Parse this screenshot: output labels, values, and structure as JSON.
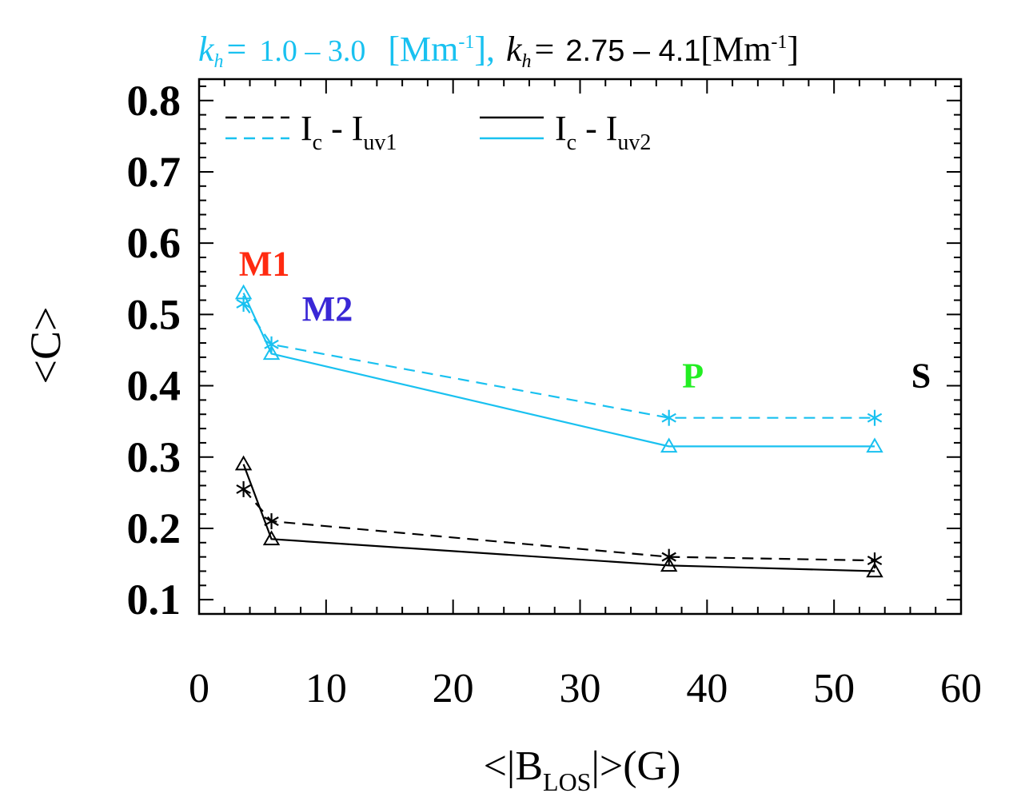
{
  "chart_data": {
    "type": "line",
    "title_parts": {
      "kh_symbol": "k",
      "kh_sub": "h",
      "eq": "=",
      "range1": "1.0 – 3.0",
      "unit1_open": "[Mm",
      "unit1_exp": "-1",
      "unit1_close": "],",
      "range2": "2.75 – 4.1",
      "unit2_open": "[Mm",
      "unit2_exp": "-1",
      "unit2_close": "]"
    },
    "xlabel_parts": {
      "pre": "<|B",
      "sub": "LOS",
      "post": "|>(G)"
    },
    "ylabel": "<C>",
    "xlim": [
      0,
      60
    ],
    "ylim": [
      0.08,
      0.83
    ],
    "x_ticks": [
      0,
      10,
      20,
      30,
      40,
      50,
      60
    ],
    "x_tick_labels": [
      "0",
      "10",
      "20",
      "30",
      "40",
      "50",
      "60"
    ],
    "y_ticks": [
      0.1,
      0.2,
      0.3,
      0.4,
      0.5,
      0.6,
      0.7,
      0.8
    ],
    "y_tick_labels": [
      "0.1",
      "0.2",
      "0.3",
      "0.4",
      "0.5",
      "0.6",
      "0.7",
      "0.8"
    ],
    "x": [
      3.5,
      5.7,
      37.0,
      53.2
    ],
    "point_labels": [
      {
        "text": "M1",
        "color": "#ff2a10"
      },
      {
        "text": "M2",
        "color": "#3a28d6"
      },
      {
        "text": "P",
        "color": "#22ee22"
      },
      {
        "text": "S",
        "color": "#000000"
      }
    ],
    "series": [
      {
        "name": "kh 1.0-3.0 Ic - Iuv1",
        "color": "#19c1f0",
        "dash": true,
        "marker": "asterisk",
        "values": [
          0.515,
          0.458,
          0.355,
          0.355
        ]
      },
      {
        "name": "kh 1.0-3.0 Ic - Iuv2",
        "color": "#19c1f0",
        "dash": false,
        "marker": "triangle",
        "values": [
          0.53,
          0.445,
          0.315,
          0.315
        ]
      },
      {
        "name": "kh 2.75-4.1 Ic - Iuv1",
        "color": "#000000",
        "dash": true,
        "marker": "asterisk",
        "values": [
          0.255,
          0.21,
          0.16,
          0.155
        ]
      },
      {
        "name": "kh 2.75-4.1 Ic - Iuv2",
        "color": "#000000",
        "dash": false,
        "marker": "triangle",
        "values": [
          0.29,
          0.185,
          0.148,
          0.14
        ]
      }
    ],
    "legend": [
      {
        "base": "I",
        "base_sub": "c",
        "sep": " - ",
        "term": "I",
        "term_sub": "uv1",
        "dash": true
      },
      {
        "base": "I",
        "base_sub": "c",
        "sep": " - ",
        "term": "I",
        "term_sub": "uv2",
        "dash": false
      }
    ],
    "colors": {
      "cyan": "#19c1f0",
      "black": "#000000"
    }
  }
}
